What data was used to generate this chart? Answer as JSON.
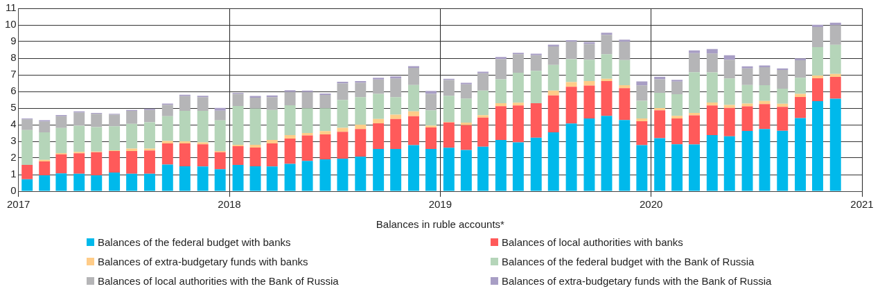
{
  "chart_data": {
    "type": "bar",
    "stacked": true,
    "xlabel": "Balances in ruble accounts*",
    "x": [
      "2017-01-16",
      "2017-02-15",
      "2017-03-16",
      "2017-04-16",
      "2017-05-16",
      "2017-06-16",
      "2017-07-16",
      "2017-08-16",
      "2017-09-16",
      "2017-10-16",
      "2017-11-16",
      "2017-12-16",
      "2018-01-16",
      "2018-02-15",
      "2018-03-16",
      "2018-04-16",
      "2018-05-16",
      "2018-06-16",
      "2018-07-16",
      "2018-08-16",
      "2018-09-16",
      "2018-10-16",
      "2018-11-16",
      "2018-12-16",
      "2019-01-16",
      "2019-02-15",
      "2019-03-16",
      "2019-04-16",
      "2019-05-16",
      "2019-06-16",
      "2019-07-16",
      "2019-08-16",
      "2019-09-16",
      "2019-10-16",
      "2019-11-16",
      "2019-12-16",
      "2020-01-16",
      "2020-02-15",
      "2020-03-16",
      "2020-04-16",
      "2020-05-16",
      "2020-06-16",
      "2020-07-16",
      "2020-08-16",
      "2020-09-16",
      "2020-10-16",
      "2020-11-16"
    ],
    "xlim": [
      "2017",
      "2021"
    ],
    "xticks": [
      "2017",
      "2018",
      "2019",
      "2020",
      "2021"
    ],
    "ylim": [
      0,
      11
    ],
    "yticks": [
      0,
      1,
      2,
      3,
      4,
      5,
      6,
      7,
      8,
      9,
      10,
      11
    ],
    "grid": true,
    "legend": "bottom",
    "series": [
      {
        "name": "Balances of the federal budget with banks",
        "color": "#00b9eb",
        "values": [
          0.72,
          0.96,
          1.07,
          1.05,
          0.96,
          1.13,
          1.05,
          1.05,
          1.6,
          1.5,
          1.49,
          1.32,
          1.58,
          1.5,
          1.49,
          1.65,
          1.82,
          1.92,
          1.96,
          2.08,
          2.54,
          2.54,
          2.77,
          2.54,
          2.61,
          2.48,
          2.68,
          3.08,
          2.94,
          3.22,
          3.54,
          4.07,
          4.37,
          4.53,
          4.28,
          2.77,
          3.19,
          2.82,
          2.81,
          3.38,
          3.3,
          3.62,
          3.74,
          3.64,
          4.4,
          5.42,
          5.56
        ]
      },
      {
        "name": "Balances of local authorities with banks",
        "color": "#ff5a5a",
        "values": [
          0.86,
          0.83,
          1.15,
          1.23,
          1.38,
          1.29,
          1.37,
          1.4,
          1.28,
          1.38,
          1.33,
          1.02,
          1.13,
          1.12,
          1.38,
          1.52,
          1.53,
          1.5,
          1.61,
          1.66,
          1.54,
          1.8,
          1.74,
          1.29,
          1.53,
          1.49,
          1.75,
          2.03,
          2.22,
          2.07,
          2.22,
          2.21,
          1.98,
          2.09,
          1.92,
          1.44,
          1.67,
          1.56,
          1.75,
          1.78,
          1.71,
          1.48,
          1.5,
          1.43,
          1.27,
          1.37,
          1.32
        ]
      },
      {
        "name": "Balances of extra-budgetary funds with banks",
        "color": "#ffcc88",
        "values": [
          null,
          0.1,
          0.07,
          0.08,
          0.05,
          0.04,
          0.14,
          0.11,
          0.14,
          0.12,
          0.12,
          0.08,
          0.08,
          0.17,
          0.21,
          0.2,
          0.15,
          0.19,
          0.24,
          0.26,
          0.26,
          0.26,
          0.29,
          0.12,
          0.03,
          0.16,
          0.14,
          0.18,
          0.16,
          null,
          0.29,
          0.28,
          0.28,
          0.14,
          0.18,
          0.17,
          0.14,
          0.15,
          0.15,
          0.17,
          0.18,
          0.17,
          0.19,
          0.19,
          0.18,
          0.17,
          0.17
        ]
      },
      {
        "name": "Balances of the federal budget with the Bank of Russia",
        "color": "#b5d5b9",
        "values": [
          2.1,
          1.65,
          1.51,
          1.58,
          1.46,
          1.45,
          1.49,
          1.59,
          1.49,
          1.83,
          1.89,
          1.84,
          2.34,
          2.18,
          1.81,
          1.8,
          1.49,
          1.38,
          1.68,
          1.66,
          1.51,
          1.06,
          1.59,
          0.91,
          1.57,
          1.44,
          1.48,
          1.44,
          1.8,
          1.95,
          1.54,
          1.38,
          1.28,
          1.48,
          1.51,
          1.06,
          0.92,
          1.3,
          2.45,
          1.82,
          1.59,
          1.12,
          0.95,
          0.91,
          0.97,
          1.71,
          1.75
        ]
      },
      {
        "name": "Balances of local authorities with the Bank of Russia",
        "color": "#b5b5b7",
        "values": [
          0.64,
          0.66,
          0.71,
          0.79,
          0.81,
          0.69,
          0.78,
          0.74,
          0.69,
          0.89,
          0.83,
          0.58,
          0.72,
          0.66,
          0.77,
          0.8,
          0.98,
          0.8,
          0.99,
          0.86,
          0.87,
          1.12,
          1.03,
          0.99,
          0.95,
          0.86,
          1.04,
          1.22,
          1.12,
          0.94,
          1.12,
          1.06,
          0.94,
          1.17,
          1.11,
          0.92,
          0.81,
          0.76,
          1.14,
          1.13,
          1.13,
          1.0,
          1.08,
          1.12,
          1.05,
          1.2,
          1.19
        ]
      },
      {
        "name": "Balances of extra-budgetary funds with the Bank of Russia",
        "color": "#a89ec5",
        "values": [
          0.06,
          0.07,
          0.07,
          0.07,
          0.05,
          0.06,
          0.06,
          0.08,
          0.07,
          0.08,
          0.08,
          0.17,
          0.07,
          0.1,
          0.1,
          0.1,
          0.08,
          0.08,
          0.1,
          0.1,
          0.1,
          0.13,
          0.1,
          0.18,
          0.07,
          0.09,
          0.1,
          0.12,
          0.08,
          0.09,
          0.1,
          0.08,
          0.12,
          0.12,
          0.11,
          0.24,
          0.16,
          0.11,
          0.17,
          0.27,
          0.27,
          0.12,
          0.1,
          0.1,
          0.12,
          0.14,
          0.15
        ]
      }
    ]
  }
}
